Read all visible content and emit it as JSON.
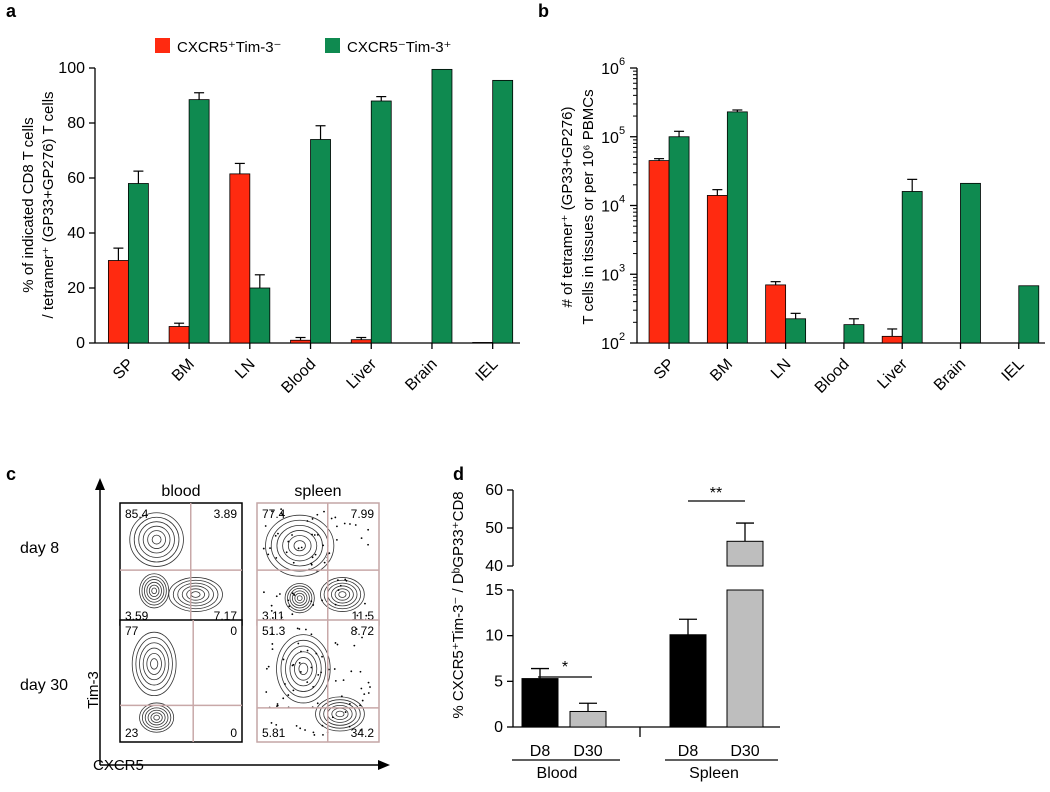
{
  "panels": {
    "a": "a",
    "b": "b",
    "c": "c",
    "d": "d"
  },
  "colors": {
    "red": "#FF2A10",
    "green": "#0F8A50",
    "black": "#000000",
    "gray": "#BEBEBE",
    "gate": "#C8A8A8"
  },
  "chart_data": [
    {
      "type": "bar",
      "panel": "a",
      "categories": [
        "SP",
        "BM",
        "LN",
        "Blood",
        "Liver",
        "Brain",
        "IEL"
      ],
      "series": [
        {
          "name": "CXCR5⁺Tim-3⁻",
          "color": "#FF2A10",
          "values": [
            30,
            6,
            61.5,
            1,
            1.2,
            null,
            0.2
          ],
          "errors": [
            4.5,
            1.2,
            3.8,
            1,
            0.8,
            null,
            0
          ]
        },
        {
          "name": "CXCR5⁻Tim-3⁺",
          "color": "#0F8A50",
          "values": [
            58,
            88.5,
            20,
            74,
            88,
            99.5,
            95.5
          ],
          "errors": [
            4.5,
            2.5,
            4.8,
            5,
            1.6,
            0,
            0
          ]
        }
      ],
      "ylim": [
        0,
        100
      ],
      "yticks": [
        "0",
        "20",
        "40",
        "60",
        "80",
        "100"
      ],
      "ylabel_lines": [
        "% of indicated CD8 T cells",
        "/ tetramer⁺ (GP33+GP276) T cells"
      ],
      "xlabel": "",
      "legend": "top"
    },
    {
      "type": "bar",
      "panel": "b",
      "yscale": "log",
      "categories": [
        "SP",
        "BM",
        "LN",
        "Blood",
        "Liver",
        "Brain",
        "IEL"
      ],
      "series": [
        {
          "name": "CXCR5⁺Tim-3⁻",
          "color": "#FF2A10",
          "values": [
            45000,
            14000,
            700,
            null,
            125,
            null,
            null
          ],
          "errors_upper": [
            48000,
            17000,
            780,
            null,
            160,
            null,
            null
          ]
        },
        {
          "name": "CXCR5⁻Tim-3⁺",
          "color": "#0F8A50",
          "values": [
            100000,
            230000,
            225,
            185,
            16000,
            21000,
            680
          ],
          "errors_upper": [
            120000,
            245000,
            270,
            225,
            24000,
            null,
            null
          ]
        }
      ],
      "ylim": [
        100,
        1000000
      ],
      "yticks": [
        {
          "base": "10",
          "exp": "2"
        },
        {
          "base": "10",
          "exp": "3"
        },
        {
          "base": "10",
          "exp": "4"
        },
        {
          "base": "10",
          "exp": "5"
        },
        {
          "base": "10",
          "exp": "6"
        }
      ],
      "ylabel_lines": [
        "# of tetramer⁺ (GP33+GP276)",
        "T cells in tissues or per 10⁶ PBMCs"
      ]
    },
    {
      "type": "other",
      "panel": "c",
      "column_headers": [
        "blood",
        "spleen"
      ],
      "row_headers": [
        "day 8",
        "day 30"
      ],
      "y_axis": "Tim-3",
      "x_axis": "CXCR5",
      "plots": [
        {
          "tl": "85.4",
          "tr": "3.89",
          "bl": "3.59",
          "br": "7.17"
        },
        {
          "tl": "77.4",
          "tr": "7.99",
          "bl": "3.11",
          "br": "11.5"
        },
        {
          "tl": "77",
          "tr": "0",
          "bl": "23",
          "br": "0"
        },
        {
          "tl": "51.3",
          "tr": "8.72",
          "bl": "5.81",
          "br": "34.2"
        }
      ]
    },
    {
      "type": "bar",
      "panel": "d",
      "categories": [
        "D8",
        "D30",
        "D8",
        "D30"
      ],
      "groups": [
        {
          "label": "Blood"
        },
        {
          "label": "Spleen"
        }
      ],
      "values": [
        5.3,
        1.7,
        10.1,
        46.5
      ],
      "errors": [
        1.1,
        0.9,
        1.7,
        4.8
      ],
      "bar_colors": [
        "#000000",
        "#BEBEBE",
        "#000000",
        "#BEBEBE"
      ],
      "axis_break": [
        15,
        40
      ],
      "yticks_lower": [
        "0",
        "5",
        "10",
        "15"
      ],
      "yticks_upper": [
        "40",
        "50",
        "60"
      ],
      "ylabel": "% CXCR5⁺Tim-3⁻ / DᵇGP33⁺CD8",
      "significance": [
        "*",
        "**"
      ]
    }
  ]
}
